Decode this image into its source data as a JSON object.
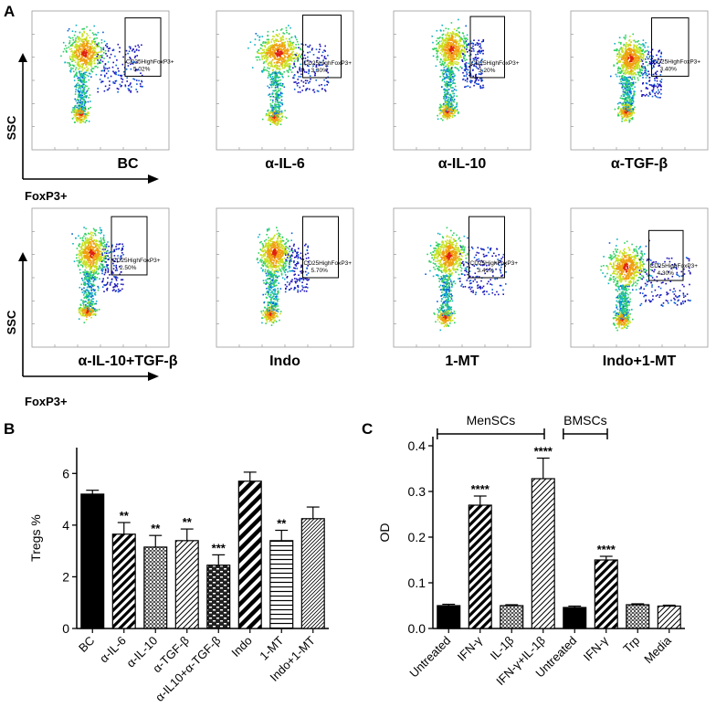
{
  "panel_labels": {
    "a": "A",
    "b": "B",
    "c": "C"
  },
  "flow": {
    "y_axis_label": "SSC",
    "x_axis_label": "FoxP3+",
    "gate_label": "CD25HighFoxP3+",
    "plots": [
      {
        "name": "BC",
        "pct": "5.02%"
      },
      {
        "name": "α-IL-6",
        "pct": "3.30%"
      },
      {
        "name": "α-IL-10",
        "pct": "3.20%"
      },
      {
        "name": "α-TGF-β",
        "pct": "3.40%"
      },
      {
        "name": "α-IL-10+TGF-β",
        "pct": "2.50%"
      },
      {
        "name": "Indo",
        "pct": "5.70%"
      },
      {
        "name": "1-MT",
        "pct": "3.41%"
      },
      {
        "name": "Indo+1-MT",
        "pct": "4.30%"
      }
    ]
  },
  "colors": {
    "bar": "#000000",
    "density_low": "#1010c8",
    "density_high": "#e02010"
  },
  "chart_data": [
    {
      "type": "bar",
      "panel": "B",
      "ylabel": "Tregs %",
      "ylim": [
        0,
        7
      ],
      "yticks": [
        0,
        2,
        4,
        6
      ],
      "categories": [
        "BC",
        "α-IL-6",
        "α-IL-10",
        "α-TGF-β",
        "α-IL10+α-TGF-β",
        "Indo",
        "1-MT",
        "Indo+1-MT"
      ],
      "values": [
        5.2,
        3.65,
        3.15,
        3.4,
        2.45,
        5.7,
        3.4,
        4.25
      ],
      "errors": [
        0.15,
        0.45,
        0.45,
        0.45,
        0.4,
        0.35,
        0.4,
        0.45
      ],
      "patterns": [
        "solid",
        "diag-thick",
        "crosshatch",
        "diag-thin",
        "brick",
        "diag-thick-wide",
        "horizontal",
        "diag-fine"
      ],
      "significance": [
        "",
        "**",
        "**",
        "**",
        "***",
        "",
        "**",
        ""
      ]
    },
    {
      "type": "bar",
      "panel": "C",
      "ylabel": "OD",
      "ylim": [
        0,
        0.42
      ],
      "yticks": [
        "0.0",
        "0.1",
        "0.2",
        "0.3",
        "0.4"
      ],
      "categories": [
        "Untreated",
        "IFN-γ",
        "IL-1β",
        "IFN-γ+IL-1β",
        "Untreated",
        "IFN-γ",
        "Trp",
        "Media"
      ],
      "values": [
        0.05,
        0.27,
        0.05,
        0.328,
        0.046,
        0.15,
        0.052,
        0.049
      ],
      "errors": [
        0.003,
        0.02,
        0.002,
        0.045,
        0.003,
        0.008,
        0.002,
        0.002
      ],
      "patterns": [
        "solid",
        "diag-thick",
        "crosshatch",
        "diag-thin",
        "solid",
        "diag-thick",
        "crosshatch",
        "diag-thin"
      ],
      "significance": [
        "",
        "****",
        "",
        "****",
        "",
        "****",
        "",
        ""
      ],
      "groups": [
        {
          "label": "MenSCs",
          "from": 0,
          "to": 3
        },
        {
          "label": "BMSCs",
          "from": 4,
          "to": 5
        }
      ]
    }
  ]
}
